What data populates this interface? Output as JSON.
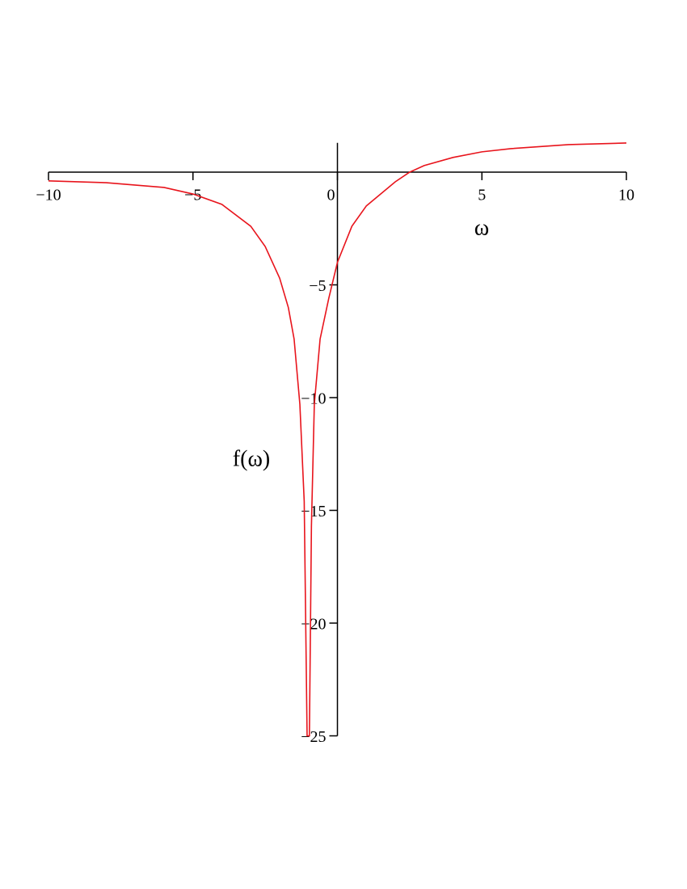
{
  "chart_data": {
    "type": "line",
    "x_label": "ω",
    "y_label": "f(ω)",
    "xlim": [
      -10,
      10
    ],
    "ylim": [
      -25,
      1.3
    ],
    "xticks": [
      {
        "value": -10,
        "label": "−10"
      },
      {
        "value": -5,
        "label": "−5"
      },
      0,
      5,
      10
    ],
    "yticks": [
      {
        "value": -5,
        "label": "−5"
      },
      {
        "value": -10,
        "label": "−10"
      },
      {
        "value": -15,
        "label": "−15"
      },
      {
        "value": -20,
        "label": "−20"
      },
      {
        "value": -25,
        "label": "−25"
      }
    ],
    "grid": false,
    "series": [
      {
        "color": "#e8141c",
        "x": [
          -10,
          -8,
          -6,
          -5,
          -4,
          -3,
          -2.5,
          -2,
          -1.7,
          -1.5,
          -1.3,
          -1.15,
          -1.05,
          -0.97,
          -0.9,
          -0.8,
          -0.6,
          -0.3,
          0,
          0.5,
          1,
          2,
          2.5,
          3,
          4,
          5,
          6,
          8,
          10
        ],
        "values": [
          -0.39,
          -0.47,
          -0.68,
          -0.97,
          -1.43,
          -2.4,
          -3.3,
          -4.7,
          -6.0,
          -7.4,
          -10.3,
          -14.6,
          -25,
          -25,
          -15.7,
          -10.3,
          -7.4,
          -5.6,
          -4.0,
          -2.4,
          -1.5,
          -0.43,
          0,
          0.29,
          0.65,
          0.9,
          1.04,
          1.22,
          1.29
        ]
      }
    ]
  }
}
